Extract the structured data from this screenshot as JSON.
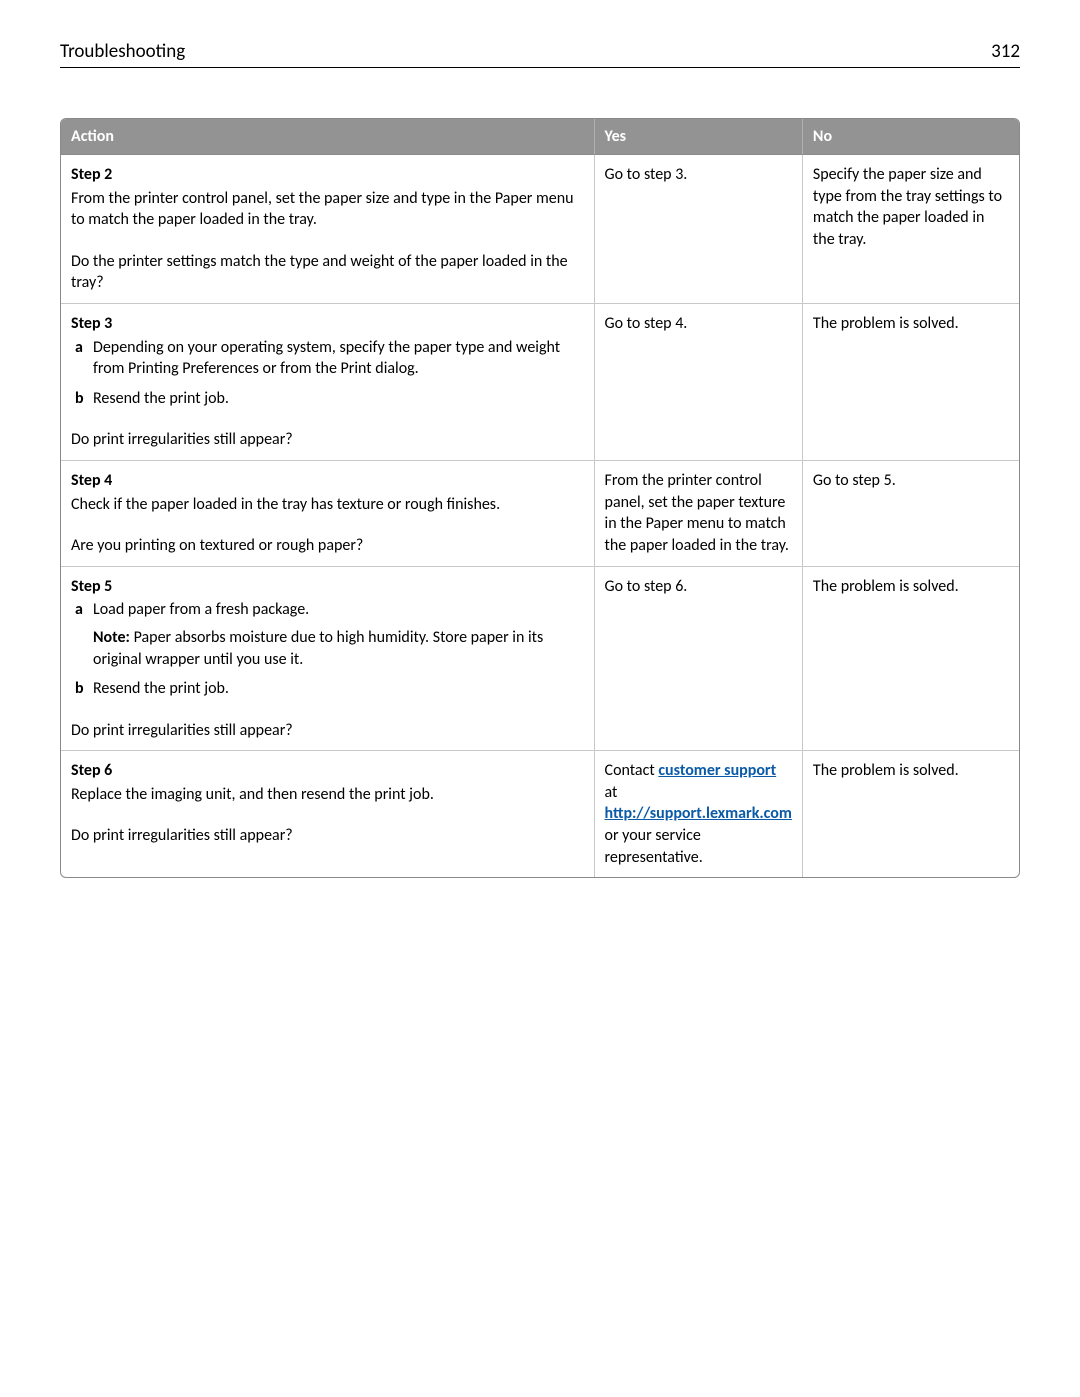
{
  "header": {
    "title": "Troubleshooting",
    "page_number": "312"
  },
  "table": {
    "columns": {
      "action": "Action",
      "yes": "Yes",
      "no": "No"
    },
    "rows": {
      "step2": {
        "title": "Step 2",
        "body": "From the printer control panel, set the paper size and type in the Paper menu to match the paper loaded in the tray.",
        "question": "Do the printer settings match the type and weight of the paper loaded in the tray?",
        "yes": "Go to step 3.",
        "no": "Specify the paper size and type from the tray settings to match the paper loaded in the tray."
      },
      "step3": {
        "title": "Step 3",
        "sub_a": "Depending on your operating system, specify the paper type and weight from Printing Preferences or from the Print dialog.",
        "sub_b": "Resend the print job.",
        "question": "Do print irregularities still appear?",
        "yes": "Go to step 4.",
        "no": "The problem is solved."
      },
      "step4": {
        "title": "Step 4",
        "body": "Check if the paper loaded in the tray has texture or rough finishes.",
        "question": "Are you printing on textured or rough paper?",
        "yes": "From the printer control panel, set the paper texture in the Paper menu to match the paper loaded in the tray.",
        "no": "Go to step 5."
      },
      "step5": {
        "title": "Step 5",
        "sub_a": "Load paper from a fresh package.",
        "note_label": "Note:",
        "note_text": " Paper absorbs moisture due to high humidity. Store paper in its original wrapper until you use it.",
        "sub_b": "Resend the print job.",
        "question": "Do print irregularities still appear?",
        "yes": "Go to step 6.",
        "no": "The problem is solved."
      },
      "step6": {
        "title": "Step 6",
        "body": "Replace the imaging unit, and then resend the print job.",
        "question": "Do print irregularities still appear?",
        "yes_pre": "Contact ",
        "yes_link1": "customer support",
        "yes_mid": " at ",
        "yes_link2": "http://support.lexmark.com",
        "yes_post": " or your service representative.",
        "no": "The problem is solved."
      }
    }
  }
}
